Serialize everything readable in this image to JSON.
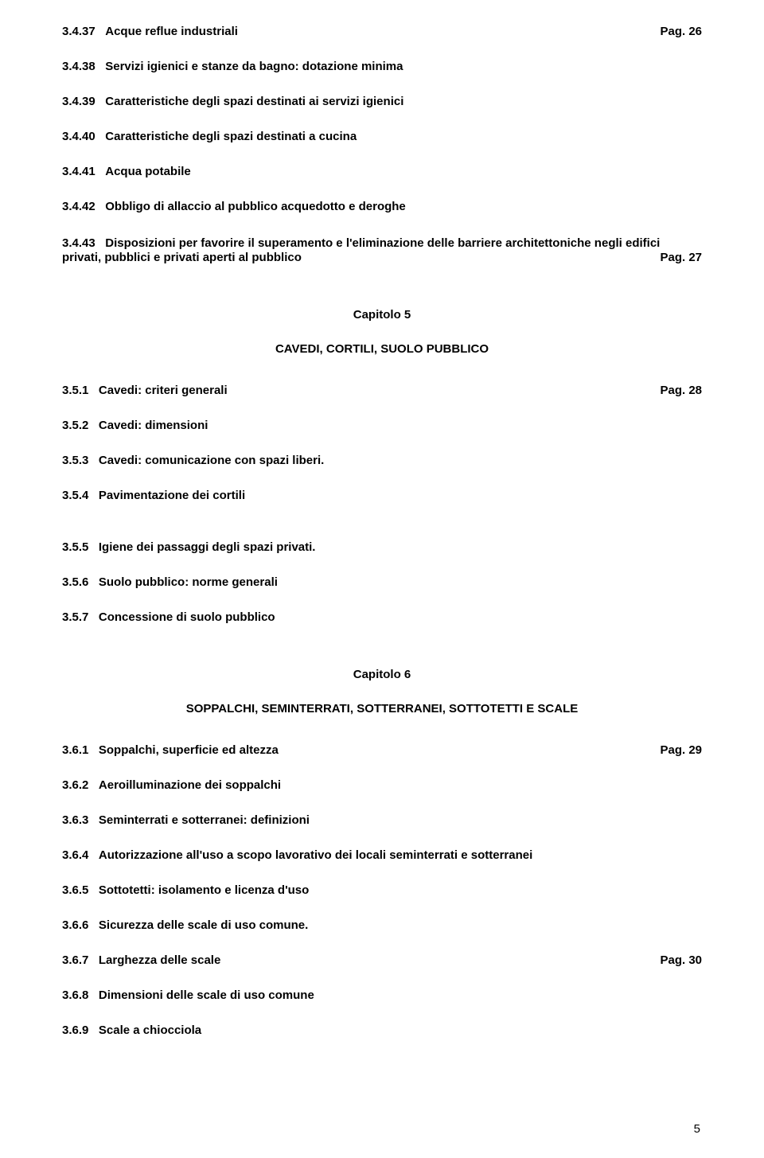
{
  "page": {
    "number": "5"
  },
  "entries_top": [
    {
      "num": "3.4.37",
      "title": "Acque reflue industriali",
      "page": "Pag. 26"
    },
    {
      "num": "3.4.38",
      "title": "Servizi igienici e stanze da bagno: dotazione minima"
    },
    {
      "num": "3.4.39",
      "title": "Caratteristiche degli spazi destinati ai servizi igienici"
    },
    {
      "num": "3.4.40",
      "title": "Caratteristiche degli spazi destinati a cucina"
    },
    {
      "num": "3.4.41",
      "title": "Acqua potabile"
    },
    {
      "num": "3.4.42",
      "title": "Obbligo di allaccio al pubblico acquedotto e deroghe"
    }
  ],
  "entry_3443": {
    "num": "3.4.43",
    "line1_rest": "Disposizioni per favorire il superamento e l'eliminazione delle barriere architettoniche negli edifici",
    "line2": "privati, pubblici e privati aperti al pubblico",
    "page": "Pag. 27"
  },
  "chapter5": {
    "num": "Capitolo 5",
    "title": "CAVEDI, CORTILI, SUOLO PUBBLICO"
  },
  "entries_ch5_a": [
    {
      "num": "3.5.1",
      "title": "Cavedi: criteri generali",
      "page": "Pag. 28"
    },
    {
      "num": "3.5.2",
      "title": "Cavedi: dimensioni"
    },
    {
      "num": "3.5.3",
      "title": "Cavedi: comunicazione con spazi liberi."
    },
    {
      "num": "3.5.4",
      "title": "Pavimentazione dei cortili"
    }
  ],
  "entries_ch5_b": [
    {
      "num": "3.5.5",
      "title": "Igiene dei passaggi degli spazi privati."
    },
    {
      "num": "3.5.6",
      "title": "Suolo pubblico: norme generali"
    },
    {
      "num": "3.5.7",
      "title": "Concessione di suolo pubblico"
    }
  ],
  "chapter6": {
    "num": "Capitolo 6",
    "title": "SOPPALCHI, SEMINTERRATI, SOTTERRANEI, SOTTOTETTI E SCALE"
  },
  "entries_ch6": [
    {
      "num": "3.6.1",
      "title": "Soppalchi, superficie ed altezza",
      "page": "Pag. 29"
    },
    {
      "num": "3.6.2",
      "title": "Aeroilluminazione dei soppalchi"
    },
    {
      "num": "3.6.3",
      "title": "Seminterrati e sotterranei: definizioni"
    },
    {
      "num": "3.6.4",
      "title": "Autorizzazione all'uso a scopo lavorativo dei locali seminterrati e sotterranei"
    },
    {
      "num": "3.6.5",
      "title": "Sottotetti: isolamento e licenza d'uso"
    },
    {
      "num": "3.6.6",
      "title": "Sicurezza delle scale di uso comune."
    },
    {
      "num": "3.6.7",
      "title": "Larghezza delle scale",
      "page": "Pag. 30"
    },
    {
      "num": "3.6.8",
      "title": "Dimensioni delle scale di uso comune"
    },
    {
      "num": "3.6.9",
      "title": "Scale a chiocciola"
    }
  ]
}
